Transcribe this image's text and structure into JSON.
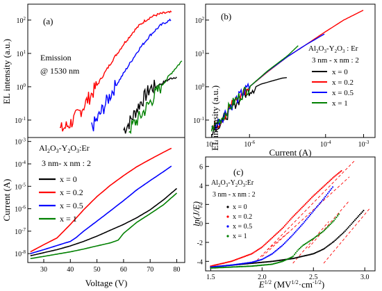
{
  "colors": {
    "x0": "#000000",
    "x02": "#ff0000",
    "x05": "#0000ff",
    "x1": "#008000",
    "fit": "#ff0000"
  },
  "panel_a": {
    "label": "(a)",
    "emission_line1": "Emission",
    "emission_line2": "@ 1530 nm",
    "ylabel_top": "EL intensity (a.u.)",
    "ylabel_bottom": "Current (A)",
    "xlabel": "Voltage (V)",
    "material": "Al",
    "material_sub1": "2",
    "material_mid": "O",
    "material_sub2": "3",
    "material_mid2": "-Y",
    "material_sub3": "2",
    "material_mid3": "O",
    "material_sub4": "3",
    "material_end": ":Er",
    "structure": "3 nm- x nm : 2",
    "legend": [
      "x = 0",
      "x = 0.2",
      "x = 0.5",
      "x = 1"
    ],
    "x_ticks": [
      "30",
      "40",
      "50",
      "60",
      "70",
      "80"
    ],
    "top_y_ticks": [
      "10",
      "10",
      "10",
      "10"
    ],
    "top_y_exps": [
      "-1",
      "0",
      "1",
      "2"
    ],
    "bot_y_ticks": [
      "10",
      "10",
      "10",
      "10",
      "10",
      "10"
    ],
    "bot_y_exps": [
      "-8",
      "-7",
      "-6",
      "-5",
      "-4",
      "-3"
    ]
  },
  "panel_b": {
    "label": "(b)",
    "ylabel": "EL intensity (a.u.)",
    "xlabel": "Current (A)",
    "material": "Al",
    "material_sub1": "2",
    "material_mid": "O",
    "material_sub2": "3",
    "material_mid2": "-Y",
    "material_sub3": "2",
    "material_mid3": "O",
    "material_sub4": "3",
    "material_end": " : Er",
    "structure": "3 nm - x nm  : 2",
    "legend": [
      "x = 0",
      "x = 0.2",
      "x = 0.5",
      "x = 1"
    ],
    "x_ticks": [
      "10",
      "10",
      "10",
      "10"
    ],
    "x_exps": [
      "-7",
      "-6",
      "-4",
      "-3"
    ],
    "y_ticks": [
      "10",
      "10",
      "10",
      "10"
    ],
    "y_exps": [
      "-1",
      "0",
      "1",
      "2"
    ]
  },
  "panel_c": {
    "label": "(c)",
    "ylabel": "ln(J/E)",
    "xlabel_base": "E",
    "xlabel_exp": "1/2",
    "xlabel_unit_open": " (MV",
    "xlabel_unit_exp1": "1/2",
    "xlabel_unit_mid": "·cm",
    "xlabel_unit_exp2": "-1/2",
    "xlabel_unit_close": ")",
    "material": "Al",
    "material_sub1": "2",
    "material_mid": "O",
    "material_sub2": "3",
    "material_mid2": "-Y",
    "material_sub3": "2",
    "material_mid3": "O",
    "material_sub4": "3",
    "material_end": ":Er",
    "structure": "3 nm - x nm : 2",
    "legend": [
      "x = 0",
      "x = 0.2",
      "x = 0.5",
      "x = 1"
    ],
    "x_ticks": [
      "1.5",
      "2.0",
      "2.5",
      "3.0"
    ],
    "y_ticks": [
      "-4",
      "-2",
      "0",
      "2",
      "4",
      "6"
    ]
  },
  "chart_data": [
    {
      "type": "line",
      "panel": "a-top",
      "ylabel": "EL intensity (a.u.)",
      "yscale": "log",
      "ylim": [
        0.03,
        300
      ],
      "xlim": [
        24,
        83
      ],
      "annotations": [
        "(a)",
        "Emission",
        "@ 1530 nm"
      ],
      "series": [
        {
          "name": "x = 0",
          "x": [
            60,
            62,
            64,
            66,
            68,
            70,
            72,
            74,
            76,
            78,
            80
          ],
          "y": [
            0.05,
            0.08,
            0.15,
            0.3,
            0.5,
            0.9,
            1.0,
            1.2,
            1.5,
            1.8,
            2.0
          ]
        },
        {
          "name": "x = 0.2",
          "x": [
            36,
            38,
            40,
            42,
            44,
            46,
            48,
            50,
            52,
            54,
            56,
            58,
            60,
            62,
            64,
            66,
            68,
            70,
            72,
            74,
            76,
            78
          ],
          "y": [
            0.05,
            0.06,
            0.08,
            0.12,
            0.2,
            0.35,
            0.6,
            1.1,
            2.0,
            3.6,
            6.5,
            11,
            19,
            30,
            48,
            70,
            95,
            120,
            140,
            155,
            165,
            170
          ]
        },
        {
          "name": "x = 0.5",
          "x": [
            48,
            50,
            52,
            54,
            56,
            58,
            60,
            62,
            64,
            66,
            68,
            70,
            72,
            74,
            76,
            78
          ],
          "y": [
            0.06,
            0.1,
            0.2,
            0.4,
            0.8,
            1.4,
            2.5,
            4.5,
            8,
            14,
            22,
            35,
            50,
            70,
            88,
            100
          ]
        },
        {
          "name": "x = 1",
          "x": [
            62,
            64,
            66,
            68,
            70,
            72,
            74,
            76,
            78,
            80,
            82
          ],
          "y": [
            0.05,
            0.08,
            0.12,
            0.2,
            0.35,
            0.6,
            1.0,
            1.6,
            2.6,
            4.0,
            6.0
          ]
        }
      ]
    },
    {
      "type": "line",
      "panel": "a-bottom",
      "xlabel": "Voltage (V)",
      "ylabel": "Current (A)",
      "yscale": "log",
      "ylim": [
        4e-09,
        0.0015
      ],
      "xlim": [
        24,
        83
      ],
      "series": [
        {
          "name": "x = 0",
          "x": [
            25,
            30,
            35,
            40,
            45,
            50,
            55,
            60,
            65,
            70,
            75,
            80
          ],
          "y": [
            8e-09,
            1.1e-08,
            1.5e-08,
            2.2e-08,
            3.5e-08,
            6e-08,
            1.1e-07,
            2e-07,
            4e-07,
            9e-07,
            2.5e-06,
            8e-06
          ]
        },
        {
          "name": "x = 0.2",
          "x": [
            25,
            30,
            35,
            40,
            45,
            50,
            55,
            60,
            65,
            70,
            75,
            78
          ],
          "y": [
            1.2e-08,
            2.5e-08,
            5e-08,
            2e-07,
            9e-07,
            3.5e-06,
            1.1e-05,
            3e-05,
            7.5e-05,
            0.00016,
            0.00033,
            0.0005
          ]
        },
        {
          "name": "x = 0.5",
          "x": [
            25,
            30,
            35,
            40,
            42,
            45,
            50,
            55,
            60,
            65,
            70,
            75,
            78
          ],
          "y": [
            1e-08,
            1.5e-08,
            2.3e-08,
            3.5e-08,
            5e-08,
            1e-07,
            2.8e-07,
            8e-07,
            2.3e-06,
            7e-06,
            1.8e-05,
            4.5e-05,
            8e-05
          ]
        },
        {
          "name": "x = 1",
          "x": [
            25,
            30,
            35,
            40,
            45,
            50,
            55,
            58,
            60,
            65,
            70,
            75,
            80
          ],
          "y": [
            6e-09,
            7.5e-09,
            9.5e-09,
            1.2e-08,
            1.6e-08,
            2.2e-08,
            3e-08,
            4e-08,
            8e-08,
            2.5e-07,
            6e-07,
            1.5e-06,
            5e-06
          ]
        }
      ]
    },
    {
      "type": "line",
      "panel": "b",
      "xlabel": "Current (A)",
      "ylabel": "EL intensity (a.u.)",
      "xscale": "log",
      "yscale": "log",
      "xlim": [
        7e-08,
        0.002
      ],
      "ylim": [
        0.03,
        300
      ],
      "series": [
        {
          "name": "x = 0",
          "x": [
            1e-07,
            2e-07,
            4e-07,
            1e-06,
            2e-06,
            4e-06,
            7e-06,
            1e-05
          ],
          "y": [
            0.05,
            0.1,
            0.3,
            0.8,
            1.2,
            1.5,
            1.8,
            1.9
          ]
        },
        {
          "name": "x = 0.2",
          "x": [
            1e-07,
            2e-07,
            4e-07,
            1e-06,
            3e-06,
            1e-05,
            3e-05,
            0.0001,
            0.0003,
            0.001
          ],
          "y": [
            0.05,
            0.12,
            0.35,
            1.0,
            2.8,
            8,
            18,
            45,
            100,
            200
          ]
        },
        {
          "name": "x = 0.5",
          "x": [
            1e-07,
            2e-07,
            4e-07,
            1e-06,
            3e-06,
            1e-05,
            3e-05,
            0.0001
          ],
          "y": [
            0.05,
            0.13,
            0.36,
            1.0,
            2.9,
            8,
            18,
            40
          ]
        },
        {
          "name": "x = 1",
          "x": [
            1e-07,
            2e-07,
            4e-07,
            1e-06,
            3e-06,
            1e-05,
            2e-05
          ],
          "y": [
            0.05,
            0.13,
            0.36,
            1.0,
            3.0,
            8.5,
            18
          ]
        }
      ]
    },
    {
      "type": "scatter",
      "panel": "c",
      "xlabel": "E^1/2 (MV^1/2·cm^-1/2)",
      "ylabel": "ln(J/E)",
      "xlim": [
        1.45,
        3.1
      ],
      "ylim": [
        -5,
        7
      ],
      "series": [
        {
          "name": "x = 0",
          "x": [
            1.5,
            1.7,
            1.9,
            2.1,
            2.3,
            2.5,
            2.6,
            2.7,
            2.8,
            2.9,
            3.0
          ],
          "y": [
            -4.6,
            -4.4,
            -4.2,
            -4.0,
            -3.7,
            -3.2,
            -2.7,
            -1.9,
            -0.9,
            0.3,
            1.5
          ]
        },
        {
          "name": "x = 0.2",
          "x": [
            1.5,
            1.7,
            1.9,
            2.0,
            2.1,
            2.2,
            2.3,
            2.4,
            2.5,
            2.6,
            2.7,
            2.78
          ],
          "y": [
            -4.5,
            -4.0,
            -3.2,
            -2.5,
            -1.5,
            -0.5,
            0.7,
            1.8,
            2.9,
            3.9,
            4.9,
            5.6
          ]
        },
        {
          "name": "x = 0.5",
          "x": [
            1.5,
            1.7,
            1.9,
            2.0,
            2.1,
            2.2,
            2.3,
            2.4,
            2.5,
            2.6,
            2.7
          ],
          "y": [
            -4.6,
            -4.4,
            -4.1,
            -3.8,
            -3.2,
            -2.3,
            -1.2,
            0.0,
            1.3,
            2.6,
            4.0
          ]
        },
        {
          "name": "x = 1",
          "x": [
            1.5,
            1.7,
            1.9,
            2.1,
            2.2,
            2.3,
            2.35,
            2.4,
            2.5,
            2.6,
            2.7,
            2.75
          ],
          "y": [
            -4.7,
            -4.6,
            -4.5,
            -4.3,
            -4.0,
            -3.5,
            -2.8,
            -2.3,
            -1.6,
            -0.8,
            0.3,
            1.0
          ]
        }
      ]
    }
  ]
}
